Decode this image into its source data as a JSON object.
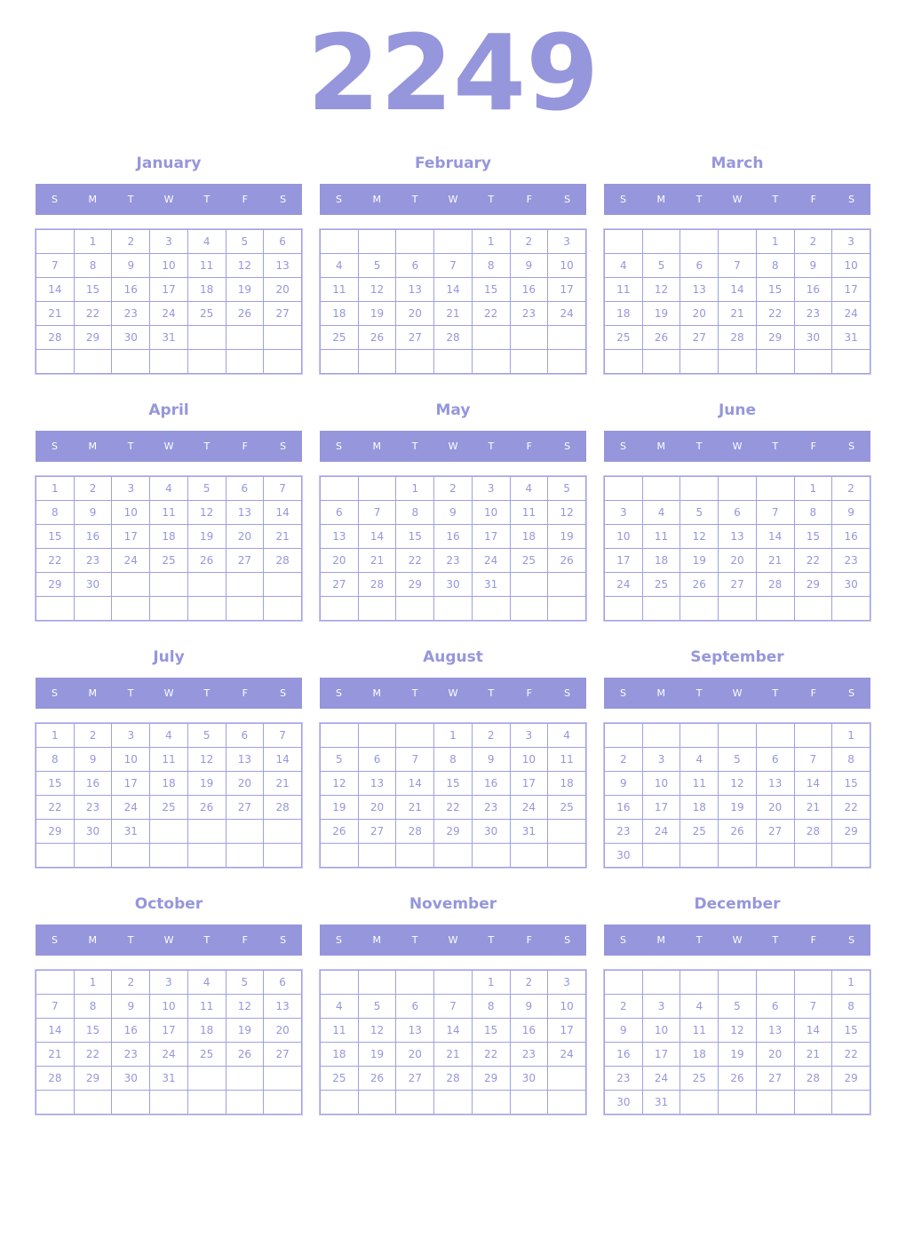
{
  "year": "2249",
  "weekdays": [
    "S",
    "M",
    "T",
    "W",
    "T",
    "F",
    "S"
  ],
  "colors": {
    "accent": "#9696dc",
    "header_text": "#ffffff",
    "border": "#a0a0e4"
  },
  "months": [
    {
      "name": "January",
      "weeks": [
        [
          "",
          "1",
          "2",
          "3",
          "4",
          "5",
          "6"
        ],
        [
          "7",
          "8",
          "9",
          "10",
          "11",
          "12",
          "13"
        ],
        [
          "14",
          "15",
          "16",
          "17",
          "18",
          "19",
          "20"
        ],
        [
          "21",
          "22",
          "23",
          "24",
          "25",
          "26",
          "27"
        ],
        [
          "28",
          "29",
          "30",
          "31",
          "",
          "",
          ""
        ],
        [
          "",
          "",
          "",
          "",
          "",
          "",
          ""
        ]
      ]
    },
    {
      "name": "February",
      "weeks": [
        [
          "",
          "",
          "",
          "",
          "1",
          "2",
          "3"
        ],
        [
          "4",
          "5",
          "6",
          "7",
          "8",
          "9",
          "10"
        ],
        [
          "11",
          "12",
          "13",
          "14",
          "15",
          "16",
          "17"
        ],
        [
          "18",
          "19",
          "20",
          "21",
          "22",
          "23",
          "24"
        ],
        [
          "25",
          "26",
          "27",
          "28",
          "",
          "",
          ""
        ],
        [
          "",
          "",
          "",
          "",
          "",
          "",
          ""
        ]
      ]
    },
    {
      "name": "March",
      "weeks": [
        [
          "",
          "",
          "",
          "",
          "1",
          "2",
          "3"
        ],
        [
          "4",
          "5",
          "6",
          "7",
          "8",
          "9",
          "10"
        ],
        [
          "11",
          "12",
          "13",
          "14",
          "15",
          "16",
          "17"
        ],
        [
          "18",
          "19",
          "20",
          "21",
          "22",
          "23",
          "24"
        ],
        [
          "25",
          "26",
          "27",
          "28",
          "29",
          "30",
          "31"
        ],
        [
          "",
          "",
          "",
          "",
          "",
          "",
          ""
        ]
      ]
    },
    {
      "name": "April",
      "weeks": [
        [
          "1",
          "2",
          "3",
          "4",
          "5",
          "6",
          "7"
        ],
        [
          "8",
          "9",
          "10",
          "11",
          "12",
          "13",
          "14"
        ],
        [
          "15",
          "16",
          "17",
          "18",
          "19",
          "20",
          "21"
        ],
        [
          "22",
          "23",
          "24",
          "25",
          "26",
          "27",
          "28"
        ],
        [
          "29",
          "30",
          "",
          "",
          "",
          "",
          ""
        ],
        [
          "",
          "",
          "",
          "",
          "",
          "",
          ""
        ]
      ]
    },
    {
      "name": "May",
      "weeks": [
        [
          "",
          "",
          "1",
          "2",
          "3",
          "4",
          "5"
        ],
        [
          "6",
          "7",
          "8",
          "9",
          "10",
          "11",
          "12"
        ],
        [
          "13",
          "14",
          "15",
          "16",
          "17",
          "18",
          "19"
        ],
        [
          "20",
          "21",
          "22",
          "23",
          "24",
          "25",
          "26"
        ],
        [
          "27",
          "28",
          "29",
          "30",
          "31",
          "",
          ""
        ],
        [
          "",
          "",
          "",
          "",
          "",
          "",
          ""
        ]
      ]
    },
    {
      "name": "June",
      "weeks": [
        [
          "",
          "",
          "",
          "",
          "",
          "1",
          "2"
        ],
        [
          "3",
          "4",
          "5",
          "6",
          "7",
          "8",
          "9"
        ],
        [
          "10",
          "11",
          "12",
          "13",
          "14",
          "15",
          "16"
        ],
        [
          "17",
          "18",
          "19",
          "20",
          "21",
          "22",
          "23"
        ],
        [
          "24",
          "25",
          "26",
          "27",
          "28",
          "29",
          "30"
        ],
        [
          "",
          "",
          "",
          "",
          "",
          "",
          ""
        ]
      ]
    },
    {
      "name": "July",
      "weeks": [
        [
          "1",
          "2",
          "3",
          "4",
          "5",
          "6",
          "7"
        ],
        [
          "8",
          "9",
          "10",
          "11",
          "12",
          "13",
          "14"
        ],
        [
          "15",
          "16",
          "17",
          "18",
          "19",
          "20",
          "21"
        ],
        [
          "22",
          "23",
          "24",
          "25",
          "26",
          "27",
          "28"
        ],
        [
          "29",
          "30",
          "31",
          "",
          "",
          "",
          ""
        ],
        [
          "",
          "",
          "",
          "",
          "",
          "",
          ""
        ]
      ]
    },
    {
      "name": "August",
      "weeks": [
        [
          "",
          "",
          "",
          "1",
          "2",
          "3",
          "4"
        ],
        [
          "5",
          "6",
          "7",
          "8",
          "9",
          "10",
          "11"
        ],
        [
          "12",
          "13",
          "14",
          "15",
          "16",
          "17",
          "18"
        ],
        [
          "19",
          "20",
          "21",
          "22",
          "23",
          "24",
          "25"
        ],
        [
          "26",
          "27",
          "28",
          "29",
          "30",
          "31",
          ""
        ],
        [
          "",
          "",
          "",
          "",
          "",
          "",
          ""
        ]
      ]
    },
    {
      "name": "September",
      "weeks": [
        [
          "",
          "",
          "",
          "",
          "",
          "",
          "1"
        ],
        [
          "2",
          "3",
          "4",
          "5",
          "6",
          "7",
          "8"
        ],
        [
          "9",
          "10",
          "11",
          "12",
          "13",
          "14",
          "15"
        ],
        [
          "16",
          "17",
          "18",
          "19",
          "20",
          "21",
          "22"
        ],
        [
          "23",
          "24",
          "25",
          "26",
          "27",
          "28",
          "29"
        ],
        [
          "30",
          "",
          "",
          "",
          "",
          "",
          ""
        ]
      ]
    },
    {
      "name": "October",
      "weeks": [
        [
          "",
          "1",
          "2",
          "3",
          "4",
          "5",
          "6"
        ],
        [
          "7",
          "8",
          "9",
          "10",
          "11",
          "12",
          "13"
        ],
        [
          "14",
          "15",
          "16",
          "17",
          "18",
          "19",
          "20"
        ],
        [
          "21",
          "22",
          "23",
          "24",
          "25",
          "26",
          "27"
        ],
        [
          "28",
          "29",
          "30",
          "31",
          "",
          "",
          ""
        ],
        [
          "",
          "",
          "",
          "",
          "",
          "",
          ""
        ]
      ]
    },
    {
      "name": "November",
      "weeks": [
        [
          "",
          "",
          "",
          "",
          "1",
          "2",
          "3"
        ],
        [
          "4",
          "5",
          "6",
          "7",
          "8",
          "9",
          "10"
        ],
        [
          "11",
          "12",
          "13",
          "14",
          "15",
          "16",
          "17"
        ],
        [
          "18",
          "19",
          "20",
          "21",
          "22",
          "23",
          "24"
        ],
        [
          "25",
          "26",
          "27",
          "28",
          "29",
          "30",
          ""
        ],
        [
          "",
          "",
          "",
          "",
          "",
          "",
          ""
        ]
      ]
    },
    {
      "name": "December",
      "weeks": [
        [
          "",
          "",
          "",
          "",
          "",
          "",
          "1"
        ],
        [
          "2",
          "3",
          "4",
          "5",
          "6",
          "7",
          "8"
        ],
        [
          "9",
          "10",
          "11",
          "12",
          "13",
          "14",
          "15"
        ],
        [
          "16",
          "17",
          "18",
          "19",
          "20",
          "21",
          "22"
        ],
        [
          "23",
          "24",
          "25",
          "26",
          "27",
          "28",
          "29"
        ],
        [
          "30",
          "31",
          "",
          "",
          "",
          "",
          ""
        ]
      ]
    }
  ]
}
